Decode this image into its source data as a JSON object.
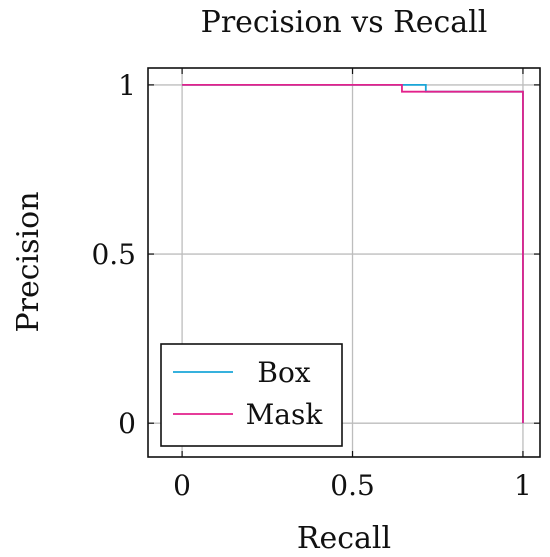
{
  "chart_data": {
    "type": "line",
    "title": "Precision vs Recall",
    "xlabel": "Recall",
    "ylabel": "Precision",
    "xlim": [
      -0.1,
      1.05
    ],
    "ylim": [
      -0.1,
      1.05
    ],
    "xticks": [
      0,
      0.5,
      1
    ],
    "xtick_labels": [
      "0",
      "0.5",
      "1"
    ],
    "yticks": [
      0,
      0.5,
      1
    ],
    "ytick_labels": [
      "0",
      "0.5",
      "1"
    ],
    "grid": true,
    "legend_position": "bottom-left",
    "series": [
      {
        "name": "Box",
        "color": "#1aa6d8",
        "x": [
          0,
          0.65,
          0.65,
          0.715,
          0.715,
          1.0,
          1.0
        ],
        "y": [
          1.0,
          1.0,
          1.0,
          1.0,
          0.98,
          0.98,
          0.0
        ]
      },
      {
        "name": "Mask",
        "color": "#e3218b",
        "x": [
          0,
          0.645,
          0.645,
          1.0,
          1.0
        ],
        "y": [
          1.0,
          1.0,
          0.98,
          0.98,
          0.0
        ]
      }
    ]
  }
}
